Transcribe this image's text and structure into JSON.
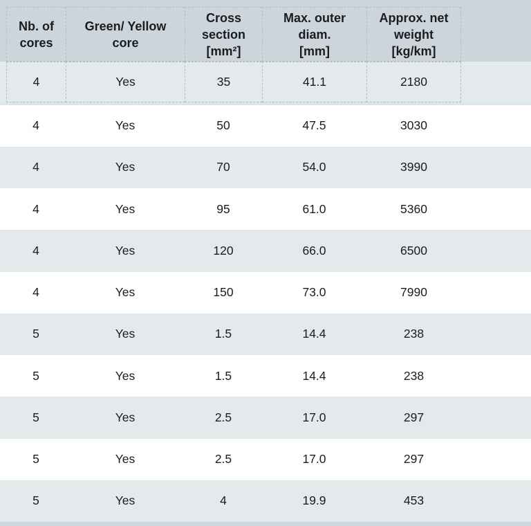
{
  "table": {
    "description": "Cable specification table",
    "columns": [
      {
        "label": "Nb. of\ncores"
      },
      {
        "label": "Green/ Yellow\ncore"
      },
      {
        "label": "Cross\nsection\n[mm²]"
      },
      {
        "label": "Max. outer\ndiam.\n[mm]"
      },
      {
        "label": "Approx. net\nweight\n[kg/km]"
      }
    ],
    "rows": [
      {
        "cells": [
          "4",
          "Yes",
          "35",
          "41.1",
          "2180"
        ]
      },
      {
        "cells": [
          "4",
          "Yes",
          "50",
          "47.5",
          "3030"
        ]
      },
      {
        "cells": [
          "4",
          "Yes",
          "70",
          "54.0",
          "3990"
        ]
      },
      {
        "cells": [
          "4",
          "Yes",
          "95",
          "61.0",
          "5360"
        ]
      },
      {
        "cells": [
          "4",
          "Yes",
          "120",
          "66.0",
          "6500"
        ]
      },
      {
        "cells": [
          "4",
          "Yes",
          "150",
          "73.0",
          "7990"
        ]
      },
      {
        "cells": [
          "5",
          "Yes",
          "1.5",
          "14.4",
          "238"
        ]
      },
      {
        "cells": [
          "5",
          "Yes",
          "1.5",
          "14.4",
          "238"
        ]
      },
      {
        "cells": [
          "5",
          "Yes",
          "2.5",
          "17.0",
          "297"
        ]
      },
      {
        "cells": [
          "5",
          "Yes",
          "2.5",
          "17.0",
          "297"
        ]
      },
      {
        "cells": [
          "5",
          "Yes",
          "4",
          "19.9",
          "453"
        ]
      }
    ]
  },
  "colors": {
    "header_background": "#ccd5dc",
    "row_shaded_background": "#e4e9ec",
    "row_plain_background": "#ffffff",
    "row_separator": "#dde5ea",
    "bottom_band": "#d0d9e0",
    "grid_dash": "#b7bcbf",
    "text": "#1c1c1c"
  }
}
